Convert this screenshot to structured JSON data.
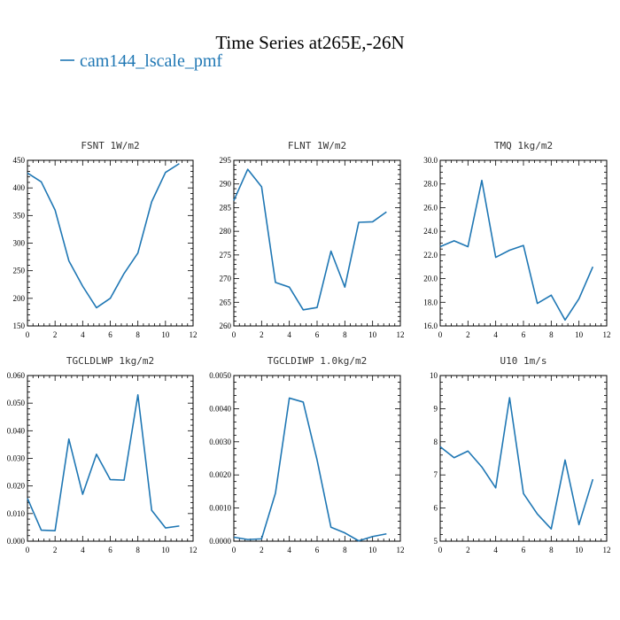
{
  "figure_title": "Time Series at265E,-26N",
  "legend_label": "cam144_lscale_pmf",
  "colors": {
    "series": "#1f77b4"
  },
  "chart_data": [
    {
      "type": "line",
      "title": "FSNT   1W/m2",
      "series_name": "cam144_lscale_pmf",
      "x": [
        0,
        1,
        2,
        3,
        4,
        5,
        6,
        7,
        8,
        9,
        10,
        11
      ],
      "values": [
        427,
        411,
        360,
        268,
        222,
        183,
        200,
        245,
        282,
        375,
        428,
        444
      ],
      "xlim": [
        0,
        12
      ],
      "ylim": [
        150,
        450
      ],
      "xticks": [
        0,
        2,
        4,
        6,
        8,
        10,
        12
      ],
      "yticks": [
        150,
        200,
        250,
        300,
        350,
        400,
        450
      ],
      "ytick_labels": [
        "150",
        "200",
        "250",
        "300",
        "350",
        "400",
        "450"
      ],
      "y_minor": 5
    },
    {
      "type": "line",
      "title": "FLNT   1W/m2",
      "series_name": "cam144_lscale_pmf",
      "x": [
        0,
        1,
        2,
        3,
        4,
        5,
        6,
        7,
        8,
        9,
        10,
        11
      ],
      "values": [
        286.5,
        293.1,
        289.4,
        269.2,
        268.2,
        263.4,
        263.9,
        275.8,
        268.2,
        281.9,
        282.0,
        284.1
      ],
      "xlim": [
        0,
        12
      ],
      "ylim": [
        260,
        295
      ],
      "xticks": [
        0,
        2,
        4,
        6,
        8,
        10,
        12
      ],
      "yticks": [
        260,
        265,
        270,
        275,
        280,
        285,
        290,
        295
      ],
      "ytick_labels": [
        "260",
        "265",
        "270",
        "275",
        "280",
        "285",
        "290",
        "295"
      ],
      "y_minor": 5
    },
    {
      "type": "line",
      "title": "TMQ   1kg/m2",
      "series_name": "cam144_lscale_pmf",
      "x": [
        0,
        1,
        2,
        3,
        4,
        5,
        6,
        7,
        8,
        9,
        10,
        11
      ],
      "values": [
        22.7,
        23.2,
        22.7,
        28.3,
        21.8,
        22.4,
        22.8,
        17.9,
        18.6,
        16.5,
        18.3,
        21.0
      ],
      "xlim": [
        0,
        12
      ],
      "ylim": [
        16,
        30
      ],
      "xticks": [
        0,
        2,
        4,
        6,
        8,
        10,
        12
      ],
      "yticks": [
        16,
        18,
        20,
        22,
        24,
        26,
        28,
        30
      ],
      "ytick_labels": [
        "16.0",
        "18.0",
        "20.0",
        "22.0",
        "24.0",
        "26.0",
        "28.0",
        "30.0"
      ],
      "y_minor": 4
    },
    {
      "type": "line",
      "title": "TGCLDLWP   1kg/m2",
      "series_name": "cam144_lscale_pmf",
      "x": [
        0,
        1,
        2,
        3,
        4,
        5,
        6,
        7,
        8,
        9,
        10,
        11
      ],
      "values": [
        0.0155,
        0.004,
        0.0038,
        0.037,
        0.017,
        0.0315,
        0.0223,
        0.0221,
        0.053,
        0.0112,
        0.0048,
        0.0055
      ],
      "xlim": [
        0,
        12
      ],
      "ylim": [
        0,
        0.06
      ],
      "xticks": [
        0,
        2,
        4,
        6,
        8,
        10,
        12
      ],
      "yticks": [
        0,
        0.01,
        0.02,
        0.03,
        0.04,
        0.05,
        0.06
      ],
      "ytick_labels": [
        "0.000",
        "0.010",
        "0.020",
        "0.030",
        "0.040",
        "0.050",
        "0.060"
      ],
      "y_minor": 5
    },
    {
      "type": "line",
      "title": "TGCLDIWP   1.0kg/m2",
      "series_name": "cam144_lscale_pmf",
      "x": [
        0,
        1,
        2,
        3,
        4,
        5,
        6,
        7,
        8,
        9,
        10,
        11
      ],
      "values": [
        0.00012,
        5e-05,
        7e-05,
        0.00145,
        0.00432,
        0.0042,
        0.00245,
        0.00042,
        0.00025,
        1e-05,
        0.00014,
        0.00022
      ],
      "xlim": [
        0,
        12
      ],
      "ylim": [
        0,
        0.005
      ],
      "xticks": [
        0,
        2,
        4,
        6,
        8,
        10,
        12
      ],
      "yticks": [
        0,
        0.001,
        0.002,
        0.003,
        0.004,
        0.005
      ],
      "ytick_labels": [
        "0.0000",
        "0.0010",
        "0.0020",
        "0.0030",
        "0.0040",
        "0.0050"
      ],
      "y_minor": 5
    },
    {
      "type": "line",
      "title": "U10   1m/s",
      "series_name": "cam144_lscale_pmf",
      "x": [
        0,
        1,
        2,
        3,
        4,
        5,
        6,
        7,
        8,
        9,
        10,
        11
      ],
      "values": [
        7.85,
        7.52,
        7.72,
        7.24,
        6.61,
        9.33,
        6.44,
        5.82,
        5.37,
        7.45,
        5.5,
        6.87
      ],
      "xlim": [
        0,
        12
      ],
      "ylim": [
        5,
        10
      ],
      "xticks": [
        0,
        2,
        4,
        6,
        8,
        10,
        12
      ],
      "yticks": [
        5,
        6,
        7,
        8,
        9,
        10
      ],
      "ytick_labels": [
        "5",
        "6",
        "7",
        "8",
        "9",
        "10"
      ],
      "y_minor": 5
    }
  ]
}
